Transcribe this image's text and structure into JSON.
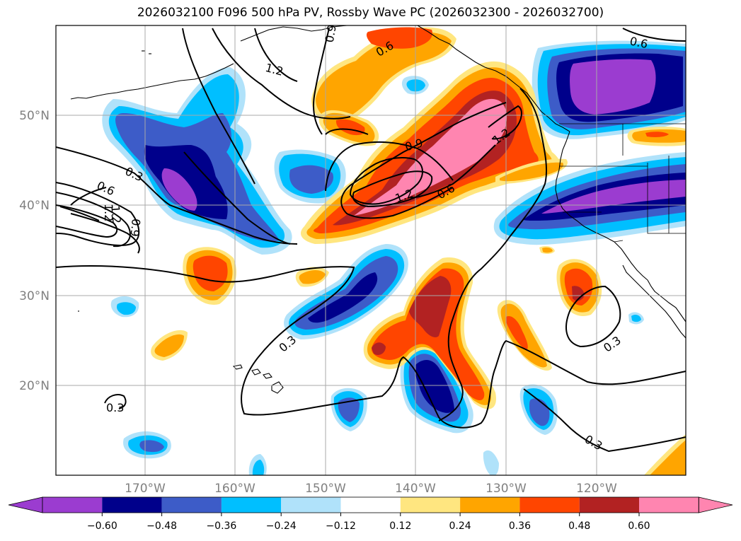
{
  "title": "2026032100 F096 500 hPa PV, Rossby Wave PC (2026032300 - 2026032700)",
  "map": {
    "lon_ticks": [
      "170°W",
      "160°W",
      "150°W",
      "140°W",
      "130°W",
      "120°W"
    ],
    "lat_ticks": [
      "50°N",
      "40°N",
      "30°N",
      "20°N"
    ],
    "contour_labels": [
      "0.6",
      "0.9",
      "1.2",
      "1.2",
      "0.6",
      "0.9",
      "1.2",
      "0.6",
      "1.2",
      "0.3",
      "0.6",
      "1.2",
      "0.9",
      "0.3",
      "0.3",
      "0.3",
      "0.3"
    ]
  },
  "colorbar": {
    "tick_labels": [
      "−0.60",
      "−0.48",
      "−0.36",
      "−0.24",
      "−0.12",
      "0.12",
      "0.24",
      "0.36",
      "0.48",
      "0.60"
    ],
    "colors": [
      "#9b3cd0",
      "#00008b",
      "#3d5cc8",
      "#00bfff",
      "#b0e2fa",
      "#ffffff",
      "#ffe680",
      "#ffa500",
      "#ff4500",
      "#b22222",
      "#ff85b0",
      "#ff85b0"
    ]
  },
  "palette": {
    "purple": "#9b3cd0",
    "navy": "#00008b",
    "blue": "#3d5cc8",
    "cyan": "#00bfff",
    "lightblue": "#b0e2fa",
    "yellow": "#ffe680",
    "orange": "#ffa500",
    "redorange": "#ff4500",
    "firebrick": "#b22222",
    "pink": "#ff85b0"
  }
}
